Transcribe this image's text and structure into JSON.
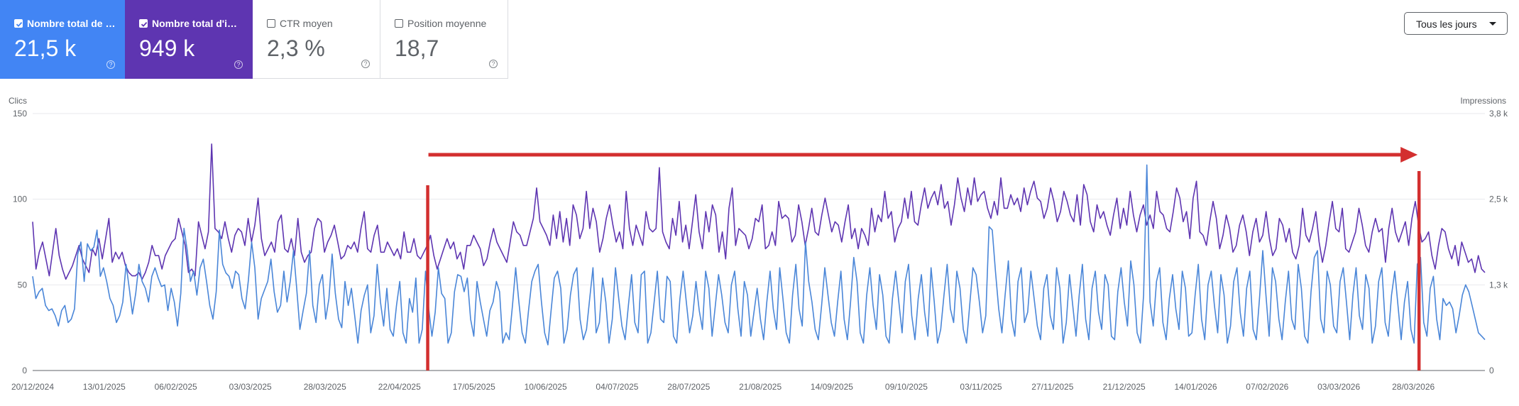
{
  "cards": [
    {
      "key": "clicks",
      "label": "Nombre total de c...",
      "value": "21,5 k",
      "checked": true,
      "color": "#4285f4"
    },
    {
      "key": "impr",
      "label": "Nombre total d'im...",
      "value": "949 k",
      "checked": true,
      "color": "#5e35b1"
    },
    {
      "key": "ctr",
      "label": "CTR moyen",
      "value": "2,3 %",
      "checked": false
    },
    {
      "key": "pos",
      "label": "Position moyenne",
      "value": "18,7",
      "checked": false
    }
  ],
  "help_glyph": "?",
  "dropdown": {
    "label": "Tous les jours"
  },
  "chart_data": {
    "type": "line",
    "left_axis": {
      "label": "Clics",
      "ticks": [
        "150",
        "100",
        "50",
        "0"
      ],
      "range": [
        0,
        150
      ]
    },
    "right_axis": {
      "label": "Impressions",
      "ticks": [
        "3,8 k",
        "2,5 k",
        "1,3 k",
        "0"
      ],
      "range": [
        0,
        3800
      ]
    },
    "x_labels": [
      "20/12/2024",
      "13/01/2025",
      "06/02/2025",
      "03/03/2025",
      "28/03/2025",
      "22/04/2025",
      "17/05/2025",
      "10/06/2025",
      "04/07/2025",
      "28/07/2025",
      "21/08/2025",
      "14/09/2025",
      "09/10/2025",
      "03/11/2025",
      "27/11/2025",
      "21/12/2025",
      "14/01/2026",
      "07/02/2026",
      "03/03/2026",
      "28/03/2026"
    ],
    "date_range": [
      "2024-12-20",
      "2026-04-21"
    ],
    "grid": true,
    "series": [
      {
        "color": "#5e35b1",
        "axis": "right",
        "y": [
          2200,
          1500,
          1750,
          1900,
          1650,
          1400,
          1750,
          2100,
          1700,
          1500,
          1350,
          1450,
          1550,
          1700,
          1850,
          1650,
          1550,
          1450,
          1800,
          1700,
          1950,
          1650,
          1950,
          2250,
          1600,
          1750,
          1650,
          1750,
          1550,
          1450,
          1400,
          1400,
          1450,
          1350,
          1450,
          1600,
          1850,
          1700,
          1700,
          1500,
          1700,
          1800,
          1900,
          1950,
          2250,
          2050,
          1850,
          1450,
          1500,
          1400,
          2200,
          2000,
          1800,
          2050,
          3350,
          2100,
          2050,
          1950,
          2200,
          1950,
          1750,
          2000,
          2100,
          2050,
          1850,
          2250,
          1900,
          2150,
          2550,
          1950,
          1700,
          1800,
          1900,
          1750,
          2200,
          2300,
          1800,
          1750,
          1950,
          1700,
          2250,
          1750,
          1600,
          1700,
          1750,
          2100,
          2250,
          2200,
          1750,
          1900,
          2000,
          2150,
          1900,
          1650,
          1700,
          1850,
          1800,
          1900,
          1750,
          2100,
          2350,
          1800,
          1750,
          2000,
          2150,
          1750,
          1750,
          1900,
          1800,
          1700,
          1800,
          1650,
          2050,
          1750,
          1750,
          1950,
          1700,
          1650,
          1750,
          1850,
          2000,
          1700,
          1500,
          1650,
          1800,
          1950,
          1800,
          1900,
          1650,
          1750,
          1500,
          1850,
          1850,
          2000,
          1900,
          1800,
          1550,
          1650,
          1900,
          2100,
          1900,
          1800,
          1700,
          1600,
          1900,
          2200,
          2050,
          2000,
          1850,
          1850,
          2050,
          2250,
          2700,
          2200,
          2100,
          2000,
          1850,
          2300,
          1950,
          2350,
          1900,
          2250,
          1850,
          2450,
          2300,
          1950,
          2100,
          2650,
          2100,
          2400,
          2200,
          1750,
          1950,
          2250,
          2450,
          2150,
          1900,
          2050,
          1800,
          2650,
          2100,
          1850,
          2150,
          2000,
          1850,
          2350,
          2100,
          2050,
          2100,
          3000,
          2050,
          1900,
          1800,
          2250,
          2000,
          2500,
          1900,
          2150,
          1800,
          2200,
          2600,
          2050,
          1800,
          2350,
          2050,
          2450,
          2300,
          1750,
          2050,
          1650,
          2400,
          2700,
          1850,
          2100,
          2050,
          2000,
          1800,
          1950,
          2250,
          2200,
          2450,
          1800,
          1850,
          2050,
          1850,
          2500,
          2250,
          2300,
          2250,
          1900,
          2000,
          2450,
          2200,
          1850,
          2100,
          2400,
          2050,
          2000,
          2300,
          2550,
          2300,
          2050,
          2200,
          2150,
          1900,
          2200,
          2450,
          1950,
          2100,
          1800,
          2100,
          2000,
          1850,
          2400,
          2050,
          2300,
          2200,
          2650,
          2250,
          2350,
          1900,
          2100,
          2200,
          2550,
          2250,
          2650,
          2200,
          2150,
          2450,
          2700,
          2400,
          2550,
          2650,
          2450,
          2750,
          2400,
          2500,
          2150,
          2450,
          2850,
          2550,
          2350,
          2700,
          2450,
          2850,
          2500,
          2600,
          2650,
          2400,
          2250,
          2500,
          2300,
          2850,
          2400,
          2400,
          2600,
          2450,
          2550,
          2350,
          2700,
          2450,
          2650,
          2800,
          2550,
          2500,
          2250,
          2400,
          2700,
          2500,
          2200,
          2350,
          2650,
          2500,
          2300,
          2200,
          2600,
          2150,
          2750,
          2600,
          2200,
          2050,
          2450,
          2250,
          2350,
          2150,
          2000,
          2300,
          2550,
          2100,
          2400,
          2150,
          2650,
          2300,
          2050,
          2300,
          2450,
          2150,
          2300,
          2100,
          2650,
          2350,
          2300,
          2100,
          2050,
          2350,
          2700,
          2550,
          2200,
          2350,
          1950,
          2550,
          2800,
          2050,
          2000,
          1850,
          2200,
          2500,
          2250,
          1800,
          2000,
          2300,
          2100,
          1750,
          1850,
          2150,
          2300,
          2050,
          1700,
          2050,
          2250,
          1900,
          2000,
          2350,
          1950,
          1700,
          1800,
          2250,
          2150,
          1900,
          2100,
          1750,
          1650,
          1850,
          2400,
          2000,
          1900,
          2100,
          2350,
          1900,
          1600,
          1850,
          2200,
          2500,
          2100,
          2050,
          2400,
          1800,
          1750,
          1900,
          2050,
          2400,
          2150,
          1850,
          1750,
          2050,
          2250,
          2050,
          2100,
          1600,
          2100,
          2400,
          2050,
          1900,
          2050,
          2200,
          1850,
          2250,
          2500,
          2150,
          1900,
          1950,
          2050,
          1700,
          1500,
          1850,
          2100,
          2050,
          1800,
          1650,
          1850,
          1550,
          1900,
          1750,
          1600,
          1650,
          1450,
          1700,
          1500,
          1450
        ],
        "x_end": "2026-04-21"
      },
      {
        "color": "#4a86d8",
        "axis": "left",
        "y": [
          55,
          42,
          46,
          48,
          38,
          35,
          36,
          32,
          26,
          35,
          38,
          28,
          30,
          36,
          68,
          75,
          52,
          74,
          70,
          72,
          82,
          55,
          60,
          52,
          42,
          38,
          28,
          32,
          40,
          62,
          48,
          33,
          45,
          62,
          52,
          48,
          40,
          55,
          60,
          54,
          49,
          50,
          35,
          48,
          40,
          26,
          45,
          83,
          70,
          52,
          58,
          44,
          60,
          65,
          52,
          38,
          30,
          46,
          82,
          62,
          57,
          55,
          48,
          58,
          56,
          42,
          36,
          53,
          75,
          60,
          30,
          42,
          47,
          52,
          65,
          46,
          34,
          38,
          58,
          40,
          52,
          70,
          48,
          24,
          35,
          45,
          70,
          38,
          28,
          50,
          56,
          30,
          42,
          68,
          45,
          30,
          25,
          52,
          38,
          48,
          32,
          16,
          35,
          44,
          50,
          22,
          32,
          62,
          40,
          26,
          48,
          24,
          20,
          38,
          52,
          22,
          16,
          42,
          34,
          54,
          16,
          24,
          58,
          36,
          20,
          34,
          60,
          45,
          42,
          16,
          22,
          46,
          56,
          55,
          46,
          54,
          30,
          20,
          52,
          40,
          30,
          20,
          35,
          40,
          52,
          46,
          16,
          22,
          18,
          38,
          60,
          40,
          22,
          16,
          35,
          52,
          58,
          62,
          40,
          22,
          15,
          35,
          54,
          58,
          48,
          16,
          24,
          44,
          56,
          60,
          30,
          18,
          24,
          42,
          60,
          22,
          28,
          54,
          40,
          16,
          30,
          60,
          42,
          26,
          18,
          38,
          56,
          28,
          22,
          56,
          58,
          16,
          22,
          40,
          58,
          30,
          28,
          55,
          52,
          20,
          16,
          42,
          58,
          40,
          22,
          32,
          52,
          35,
          24,
          58,
          48,
          20,
          38,
          56,
          44,
          28,
          22,
          50,
          58,
          36,
          20,
          52,
          44,
          20,
          34,
          48,
          30,
          18,
          40,
          58,
          36,
          24,
          60,
          42,
          22,
          16,
          44,
          62,
          36,
          26,
          75,
          52,
          40,
          24,
          18,
          38,
          60,
          44,
          28,
          20,
          40,
          58,
          30,
          18,
          40,
          66,
          52,
          22,
          16,
          44,
          60,
          38,
          24,
          56,
          44,
          20,
          16,
          42,
          58,
          40,
          22,
          52,
          62,
          32,
          18,
          42,
          56,
          34,
          20,
          60,
          40,
          16,
          24,
          44,
          62,
          36,
          28,
          58,
          48,
          24,
          16,
          38,
          60,
          56,
          40,
          22,
          32,
          84,
          82,
          58,
          36,
          22,
          44,
          64,
          30,
          20,
          52,
          60,
          28,
          34,
          58,
          42,
          26,
          18,
          48,
          56,
          32,
          24,
          60,
          48,
          16,
          28,
          56,
          38,
          20,
          44,
          62,
          30,
          18,
          48,
          58,
          34,
          24,
          56,
          50,
          20,
          18,
          46,
          60,
          40,
          26,
          64,
          50,
          22,
          16,
          44,
          120,
          40,
          26,
          52,
          60,
          28,
          18,
          42,
          56,
          36,
          24,
          58,
          48,
          20,
          22,
          44,
          62,
          30,
          18,
          50,
          58,
          38,
          22,
          56,
          44,
          16,
          26,
          52,
          60,
          34,
          20,
          48,
          58,
          24,
          18,
          42,
          70,
          44,
          20,
          60,
          52,
          30,
          18,
          40,
          58,
          30,
          24,
          62,
          48,
          20,
          16,
          46,
          66,
          70,
          30,
          22,
          58,
          50,
          26,
          22,
          52,
          60,
          40,
          18,
          44,
          60,
          32,
          24,
          56,
          48,
          16,
          26,
          52,
          60,
          28,
          20,
          44,
          58,
          38,
          18,
          40,
          52,
          24,
          16,
          62,
          66,
          28,
          20,
          48,
          55,
          30,
          18,
          42,
          38,
          40,
          36,
          22,
          32,
          44,
          50,
          46,
          38,
          30,
          22,
          20,
          18
        ]
      }
    ],
    "annotations": {
      "arrow": {
        "from": "2025-05-01",
        "to": "2026-03-28",
        "color": "#d32f2f"
      },
      "markers": [
        {
          "x": "2025-05-01",
          "color": "#d32f2f"
        },
        {
          "x": "2026-03-28",
          "color": "#d32f2f"
        }
      ]
    }
  }
}
